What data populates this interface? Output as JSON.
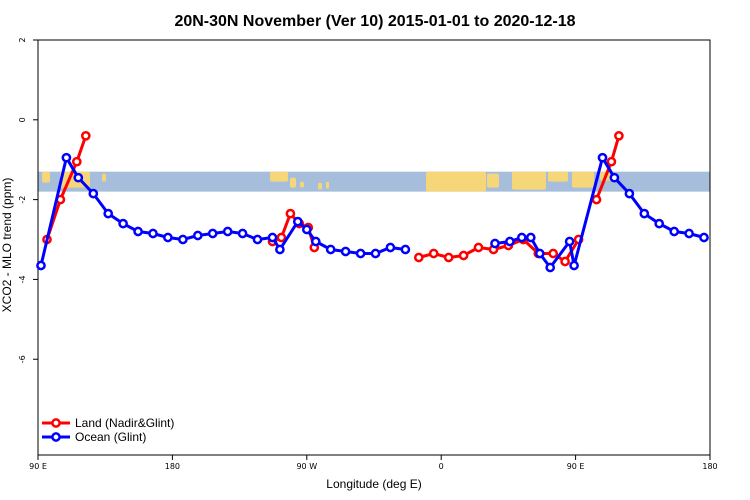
{
  "chart_data": {
    "type": "line",
    "title": "20N-30N November (Ver 10)   2015-01-01 to 2020-12-18",
    "xlabel": "Longitude (deg E)",
    "ylabel": "XCO2 - MLO trend (ppm)",
    "xlim": [
      90,
      540
    ],
    "ylim": [
      -8.4,
      2
    ],
    "x_ticks": [
      {
        "value": 90,
        "label": "90 E"
      },
      {
        "value": 180,
        "label": "180"
      },
      {
        "value": 270,
        "label": "90 W"
      },
      {
        "value": 360,
        "label": "0"
      },
      {
        "value": 450,
        "label": "90 E"
      },
      {
        "value": 540,
        "label": "180"
      }
    ],
    "y_ticks": [
      {
        "value": 2,
        "label": "2"
      },
      {
        "value": 0,
        "label": "0"
      },
      {
        "value": -2,
        "label": "-2"
      },
      {
        "value": -4,
        "label": "-4"
      },
      {
        "value": -6,
        "label": "-6"
      }
    ],
    "grid": false,
    "legend_position": "bottom-left",
    "map_strip": {
      "y_top": -1.3,
      "y_bottom": -1.8,
      "ocean_color": "#a6bddb",
      "land_color": "#f5d77a"
    },
    "series": [
      {
        "name": "Land (Nadir&Glint)",
        "color": "#ff0000",
        "segments": [
          [
            [
              96,
              -3.0
            ],
            [
              105,
              -2.0
            ],
            [
              116,
              -1.05
            ],
            [
              122,
              -0.4
            ]
          ],
          [
            [
              247,
              -3.05
            ],
            [
              253,
              -2.95
            ],
            [
              259,
              -2.35
            ],
            [
              265,
              -2.6
            ],
            [
              271,
              -2.7
            ],
            [
              275,
              -3.2
            ]
          ],
          [
            [
              345,
              -3.45
            ],
            [
              355,
              -3.35
            ],
            [
              365,
              -3.45
            ],
            [
              375,
              -3.4
            ],
            [
              385,
              -3.2
            ],
            [
              395,
              -3.25
            ],
            [
              405,
              -3.15
            ],
            [
              415,
              -3.0
            ],
            [
              425,
              -3.35
            ],
            [
              435,
              -3.35
            ],
            [
              443,
              -3.55
            ],
            [
              452,
              -3.0
            ]
          ],
          [
            [
              464,
              -2.0
            ],
            [
              474,
              -1.05
            ],
            [
              479,
              -0.4
            ]
          ]
        ]
      },
      {
        "name": "Ocean (Glint)",
        "color": "#0000ff",
        "segments": [
          [
            [
              92,
              -3.65
            ],
            [
              109,
              -0.95
            ],
            [
              117,
              -1.45
            ],
            [
              127,
              -1.85
            ],
            [
              137,
              -2.35
            ],
            [
              147,
              -2.6
            ],
            [
              157,
              -2.8
            ],
            [
              167,
              -2.85
            ],
            [
              177,
              -2.95
            ],
            [
              187,
              -3.0
            ],
            [
              197,
              -2.9
            ],
            [
              207,
              -2.85
            ],
            [
              217,
              -2.8
            ],
            [
              227,
              -2.85
            ],
            [
              237,
              -3.0
            ],
            [
              247,
              -2.95
            ],
            [
              252,
              -3.25
            ],
            [
              264,
              -2.55
            ],
            [
              270,
              -2.75
            ],
            [
              276,
              -3.05
            ],
            [
              286,
              -3.25
            ],
            [
              296,
              -3.3
            ],
            [
              306,
              -3.35
            ],
            [
              316,
              -3.35
            ],
            [
              326,
              -3.2
            ],
            [
              336,
              -3.25
            ]
          ],
          [
            [
              396,
              -3.1
            ],
            [
              406,
              -3.05
            ],
            [
              414,
              -2.95
            ],
            [
              420,
              -2.95
            ],
            [
              426,
              -3.35
            ],
            [
              433,
              -3.7
            ],
            [
              446,
              -3.05
            ],
            [
              449,
              -3.65
            ],
            [
              468,
              -0.95
            ],
            [
              476,
              -1.45
            ],
            [
              486,
              -1.85
            ],
            [
              496,
              -2.35
            ],
            [
              506,
              -2.6
            ],
            [
              516,
              -2.8
            ],
            [
              526,
              -2.85
            ],
            [
              536,
              -2.95
            ]
          ]
        ]
      }
    ]
  }
}
